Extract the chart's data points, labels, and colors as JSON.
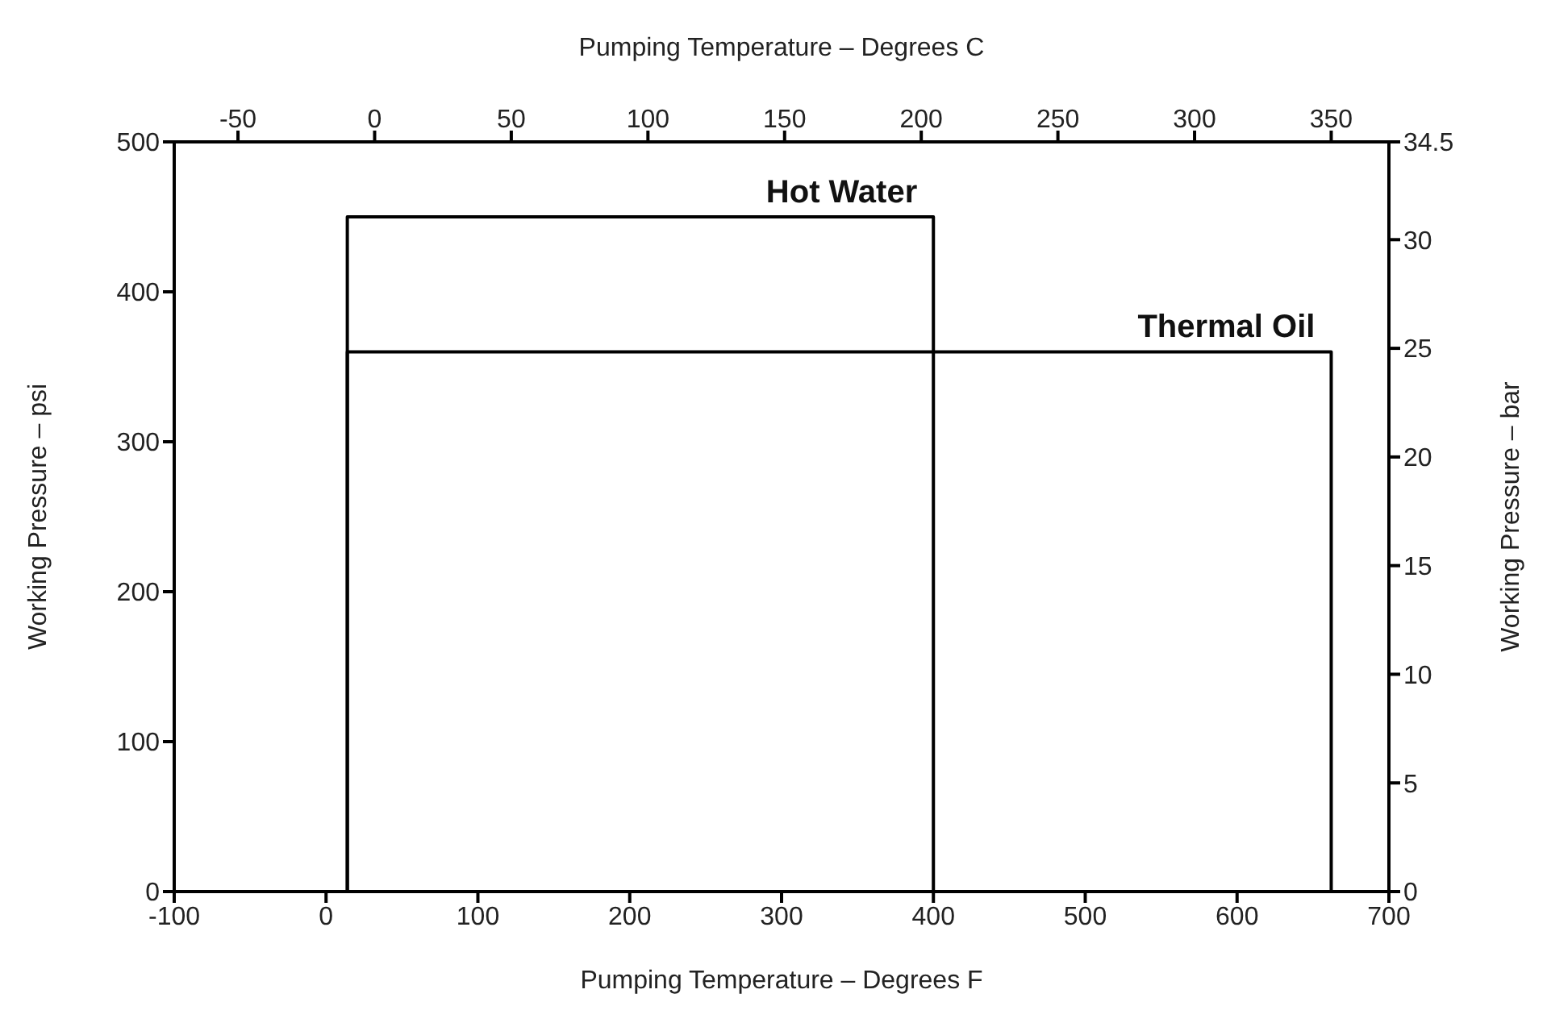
{
  "chart_data": {
    "type": "line",
    "xlabel": "Pumping Temperature – Degrees F",
    "x2label": "Pumping Temperature – Degrees C",
    "ylabel": "Working Pressure – psi",
    "y2label": "Working Pressure – bar",
    "xlim": [
      -100,
      700
    ],
    "xticks": [
      -100,
      0,
      100,
      200,
      300,
      400,
      500,
      600,
      700
    ],
    "x2lim": [
      -73.33,
      371.11
    ],
    "x2ticks": [
      -50,
      0,
      50,
      100,
      150,
      200,
      250,
      300,
      350
    ],
    "ylim": [
      0,
      500
    ],
    "yticks": [
      0,
      100,
      200,
      300,
      400,
      500
    ],
    "y2lim": [
      0,
      34.5
    ],
    "y2ticks": [
      0,
      5,
      10,
      15,
      20,
      25,
      30,
      34.5
    ],
    "grid": false,
    "marker": "none",
    "line_style": "solid",
    "series": [
      {
        "name": "Hot Water",
        "color": "#000000",
        "x": [
          14,
          14,
          400,
          400
        ],
        "values": [
          0,
          450,
          450,
          0
        ]
      },
      {
        "name": "Thermal Oil",
        "color": "#000000",
        "x": [
          14,
          14,
          662,
          662
        ],
        "values": [
          0,
          360,
          360,
          0
        ]
      }
    ]
  }
}
